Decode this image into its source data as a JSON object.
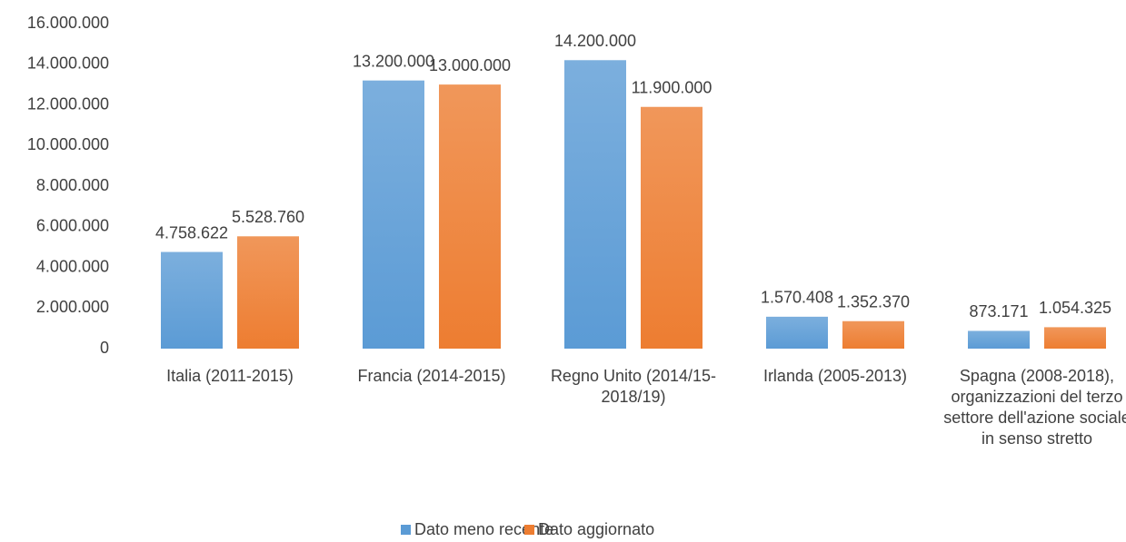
{
  "chart_data": {
    "type": "bar",
    "categories": [
      "Italia (2011-2015)",
      "Francia (2014-2015)",
      "Regno Unito (2014/15-2018/19)",
      "Irlanda (2005-2013)",
      "Spagna (2008-2018), organizzazioni del terzo settore dell'azione sociale in senso stretto"
    ],
    "series": [
      {
        "name": "Dato meno recente",
        "color": "#5b9bd5",
        "values": [
          4758622,
          13200000,
          14200000,
          1570408,
          873171
        ],
        "value_labels": [
          "4.758.622",
          "13.200.000",
          "14.200.000",
          "1.570.408",
          "873.171"
        ]
      },
      {
        "name": "Dato aggiornato",
        "color": "#ed7d31",
        "values": [
          5528760,
          13000000,
          11900000,
          1352370,
          1054325
        ],
        "value_labels": [
          "5.528.760",
          "13.000.000",
          "11.900.000",
          "1.352.370",
          "1.054.325"
        ]
      }
    ],
    "ylim": [
      0,
      16000000
    ],
    "yticks": [
      0,
      {
        "value": 2000000,
        "label": "2.000.000"
      },
      {
        "value": 4000000,
        "label": "4.000.000"
      },
      {
        "value": 6000000,
        "label": "6.000.000"
      },
      {
        "value": 8000000,
        "label": "8.000.000"
      },
      {
        "value": 10000000,
        "label": "10.000.000"
      },
      {
        "value": 12000000,
        "label": "12.000.000"
      },
      {
        "value": 14000000,
        "label": "14.000.000"
      },
      {
        "value": 16000000,
        "label": "16.000.000"
      }
    ],
    "grid": false,
    "legend": "bottom"
  }
}
